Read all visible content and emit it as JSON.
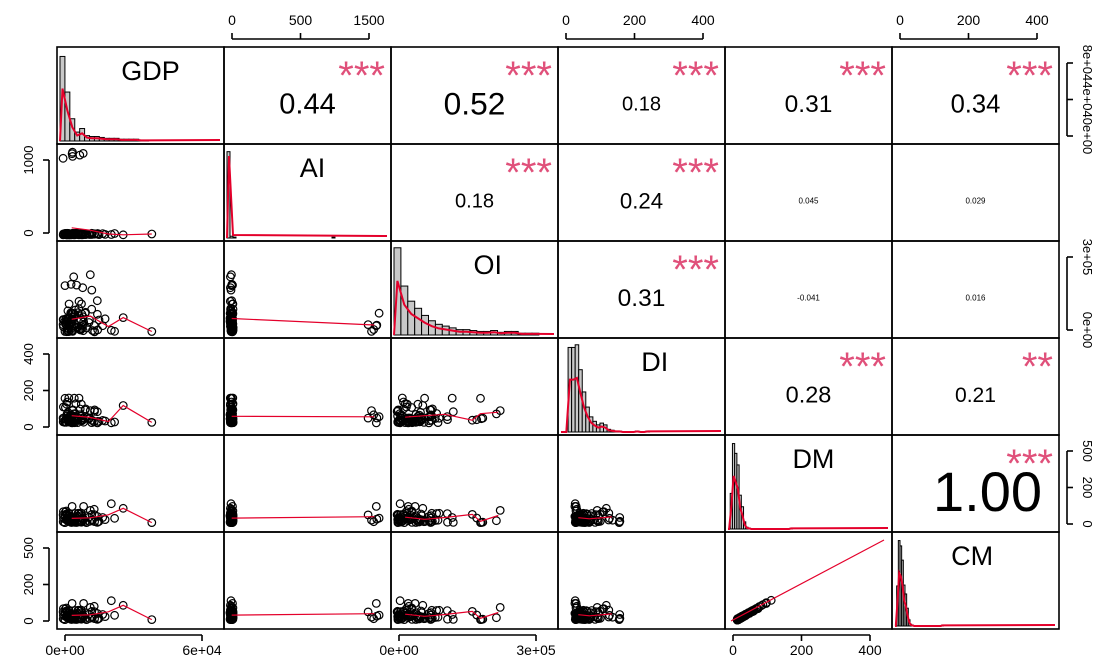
{
  "chart_data": {
    "type": "scatter",
    "title": "",
    "variables": [
      "GDP",
      "AI",
      "OI",
      "DI",
      "DM",
      "CM"
    ],
    "correlations": [
      {
        "row": 0,
        "col": 1,
        "r": "0.44",
        "stars": "***"
      },
      {
        "row": 0,
        "col": 2,
        "r": "0.52",
        "stars": "***"
      },
      {
        "row": 0,
        "col": 3,
        "r": "0.18",
        "stars": "***"
      },
      {
        "row": 0,
        "col": 4,
        "r": "0.31",
        "stars": "***"
      },
      {
        "row": 0,
        "col": 5,
        "r": "0.34",
        "stars": "***"
      },
      {
        "row": 1,
        "col": 2,
        "r": "0.18",
        "stars": "***"
      },
      {
        "row": 1,
        "col": 3,
        "r": "0.24",
        "stars": "***"
      },
      {
        "row": 1,
        "col": 4,
        "r": "0.045",
        "stars": ""
      },
      {
        "row": 1,
        "col": 5,
        "r": "0.029",
        "stars": ""
      },
      {
        "row": 2,
        "col": 3,
        "r": "0.31",
        "stars": "***"
      },
      {
        "row": 2,
        "col": 4,
        "r": "-0.041",
        "stars": ""
      },
      {
        "row": 2,
        "col": 5,
        "r": "0.016",
        "stars": ""
      },
      {
        "row": 3,
        "col": 4,
        "r": "0.28",
        "stars": "***"
      },
      {
        "row": 3,
        "col": 5,
        "r": "0.21",
        "stars": "**"
      },
      {
        "row": 4,
        "col": 5,
        "r": "1.00",
        "stars": "***"
      }
    ],
    "axes": {
      "bottom": [
        {
          "col": 0,
          "ticks": [
            "0e+00",
            "6e+04"
          ]
        },
        {
          "col": 2,
          "ticks": [
            "0e+00",
            "3e+05"
          ]
        },
        {
          "col": 4,
          "ticks": [
            "0",
            "200",
            "400"
          ]
        }
      ],
      "top": [
        {
          "col": 1,
          "ticks": [
            "0",
            "500",
            "1500"
          ]
        },
        {
          "col": 3,
          "ticks": [
            "0",
            "200",
            "400"
          ]
        },
        {
          "col": 5,
          "ticks": [
            "0",
            "200",
            "400"
          ]
        }
      ],
      "left": [
        {
          "row": 1,
          "ticks": [
            "0",
            "1000"
          ]
        },
        {
          "row": 3,
          "ticks": [
            "0",
            "200",
            "400"
          ]
        },
        {
          "row": 5,
          "ticks": [
            "0",
            "200",
            "500"
          ]
        }
      ],
      "right": [
        {
          "row": 0,
          "ticks": [
            "0e+00",
            "4e+04",
            "8e+04"
          ]
        },
        {
          "row": 2,
          "ticks": [
            "0e+00",
            "3e+05"
          ]
        },
        {
          "row": 4,
          "ticks": [
            "0",
            "200",
            "500"
          ]
        }
      ]
    },
    "grid": false,
    "legend": "none"
  }
}
